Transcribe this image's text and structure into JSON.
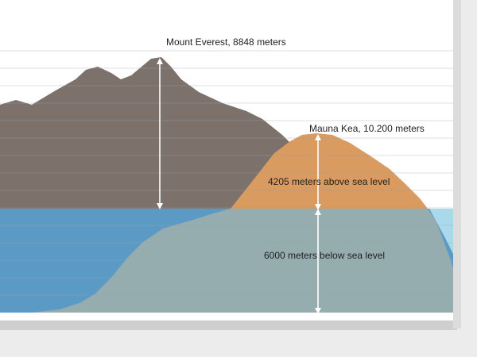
{
  "labels": {
    "everest": "Mount Everest, 8848 meters",
    "mauna_kea": "Mauna Kea, 10.200 meters",
    "above_sea": "4205 meters above sea level",
    "below_sea": "6000 meters below sea level"
  },
  "colors": {
    "everest": "#7d716c",
    "mauna_kea": "#d99b5f",
    "sea": "#5b9ac4",
    "sea_right": "#a9d9ea",
    "submerged": "#95adae",
    "arrow": "#ffffff"
  }
}
